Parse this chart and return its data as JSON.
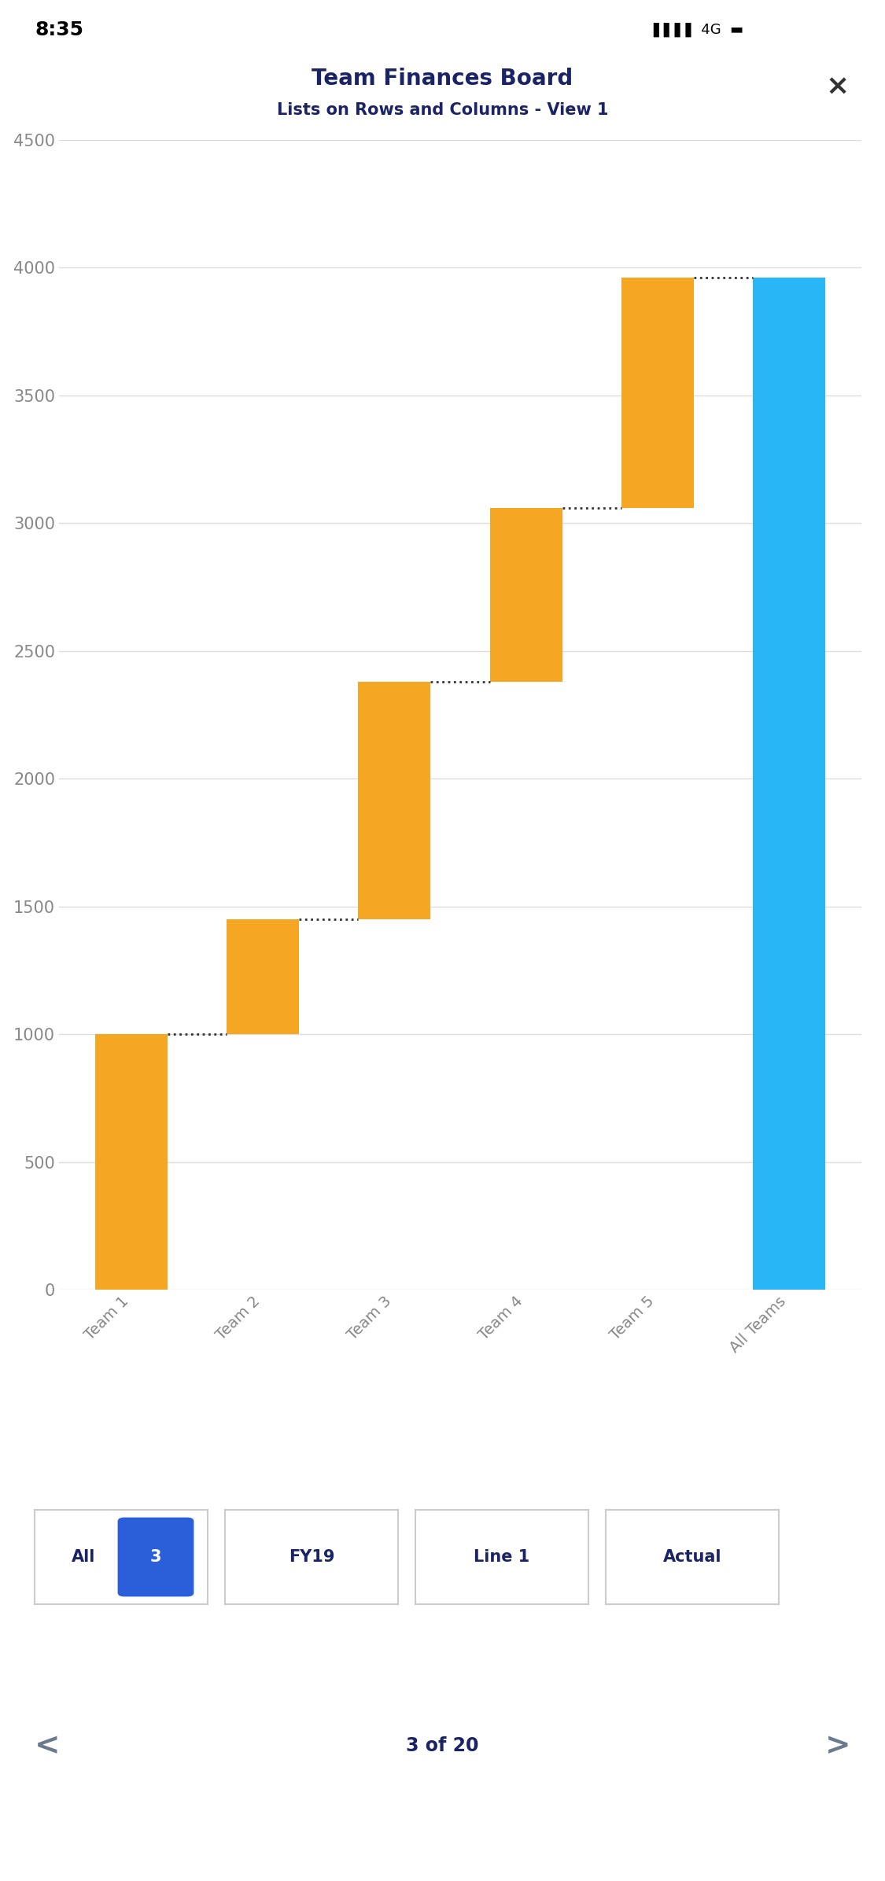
{
  "title": "Team Finances Board",
  "subtitle": "Lists on Rows and Columns - View 1",
  "categories": [
    "Team 1",
    "Team 2",
    "Team 3",
    "Team 4",
    "Team 5",
    "All Teams"
  ],
  "values": [
    1000,
    450,
    930,
    680,
    900,
    3960
  ],
  "starts": [
    0,
    1000,
    1450,
    2380,
    3060,
    0
  ],
  "bar_colors": [
    "#F5A623",
    "#F5A623",
    "#F5A623",
    "#F5A623",
    "#F5A623",
    "#29B6F6"
  ],
  "ylim": [
    0,
    4500
  ],
  "yticks": [
    0,
    500,
    1000,
    1500,
    2000,
    2500,
    3000,
    3500,
    4000,
    4500
  ],
  "bg_color": "#FFFFFF",
  "chart_area_bg": "#FFFFFF",
  "grid_color": "#DDDDDD",
  "title_color": "#1A2366",
  "tick_color": "#888888",
  "connector_color": "#333333",
  "title_fontsize": 20,
  "subtitle_fontsize": 15,
  "tick_fontsize": 15,
  "xlabel_fontsize": 14,
  "status_bar": "8:35",
  "nav_label": "3 of 20",
  "close_symbol": "×",
  "nav_bg_color": "#F2F2F7",
  "button_border_color": "#CCCCCC",
  "badge_color": "#2B5FD9",
  "nav_text_color": "#1A2366",
  "arrow_color": "#6B7B8D"
}
